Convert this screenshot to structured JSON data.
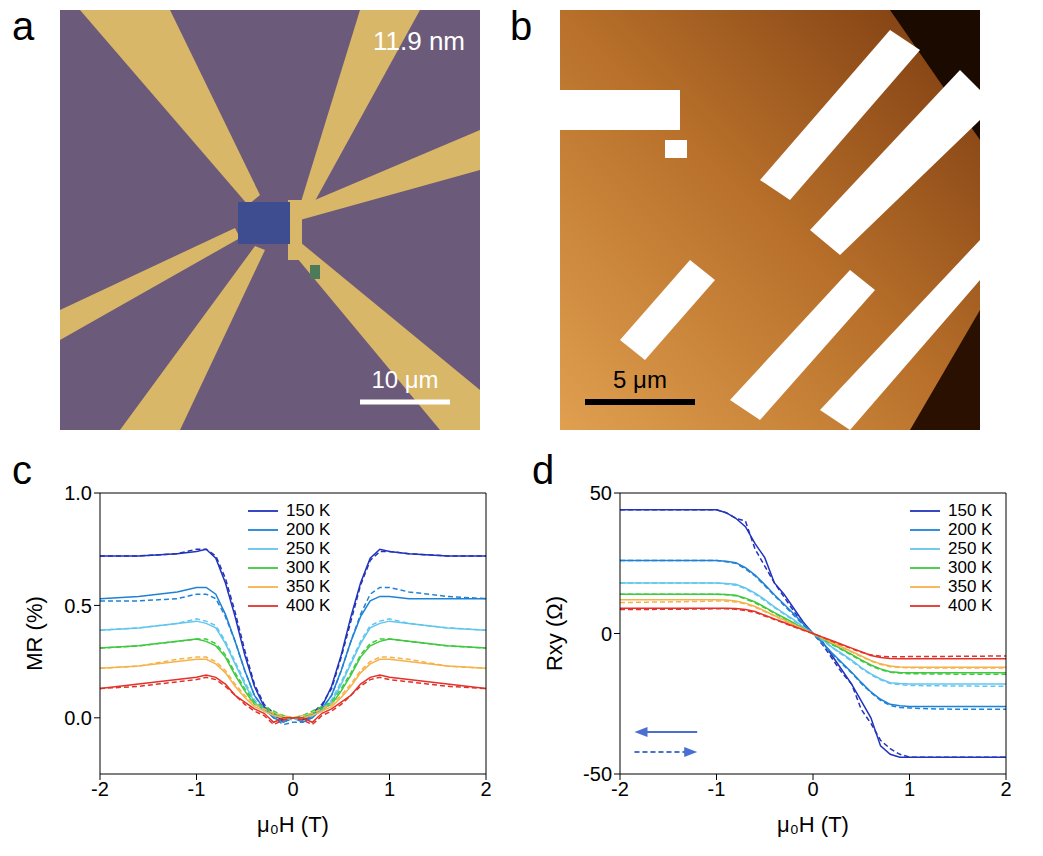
{
  "images": [
    {
      "panel": "a",
      "texts": [
        "11.9 nm"
      ],
      "scale_bar": "10 μm"
    },
    {
      "panel": "b",
      "scale_bar": "5 μm"
    }
  ],
  "chart_data": [
    {
      "panel": "c",
      "type": "line",
      "x_label": "μ₀H (T)",
      "y_label": "MR (%)",
      "xlim": [
        -2,
        2
      ],
      "xticks": [
        -2,
        -1,
        0,
        1,
        2
      ],
      "ylim": [
        -0.25,
        1
      ],
      "yticks": [
        {
          "value": 0,
          "label": "0.0"
        },
        {
          "value": 0.5,
          "label": "0.5"
        },
        {
          "value": 1,
          "label": "1.0"
        }
      ],
      "legend": "top",
      "x": [
        -2,
        -1.6,
        -1.2,
        -1,
        -0.9,
        -0.8,
        -0.7,
        -0.6,
        -0.5,
        -0.4,
        -0.3,
        -0.2,
        -0.1,
        0,
        0.1,
        0.2,
        0.3,
        0.4,
        0.5,
        0.6,
        0.7,
        0.8,
        0.9,
        1,
        1.2,
        1.6,
        2
      ],
      "series": [
        {
          "name": "150 K",
          "color": "#2233bb",
          "line_style": "solid",
          "values": [
            0.72,
            0.72,
            0.73,
            0.74,
            0.75,
            0.71,
            0.6,
            0.45,
            0.28,
            0.14,
            0.05,
            0.01,
            -0.01,
            0.0,
            -0.01,
            0.01,
            0.05,
            0.14,
            0.28,
            0.45,
            0.6,
            0.71,
            0.75,
            0.74,
            0.73,
            0.72,
            0.72
          ]
        },
        {
          "name": "150 K",
          "color": "#2233bb",
          "line_style": "dashed",
          "values": [
            0.72,
            0.72,
            0.73,
            0.75,
            0.75,
            0.72,
            0.62,
            0.47,
            0.3,
            0.15,
            0.06,
            0.02,
            -0.02,
            0.0,
            0.0,
            0.02,
            0.06,
            0.13,
            0.27,
            0.43,
            0.59,
            0.7,
            0.74,
            0.74,
            0.73,
            0.72,
            0.72
          ]
        },
        {
          "name": "200 K",
          "color": "#1f82d6",
          "line_style": "solid",
          "values": [
            0.53,
            0.54,
            0.56,
            0.58,
            0.58,
            0.55,
            0.46,
            0.34,
            0.21,
            0.1,
            0.04,
            0.0,
            -0.02,
            0.0,
            -0.02,
            0.0,
            0.04,
            0.1,
            0.21,
            0.34,
            0.45,
            0.52,
            0.54,
            0.54,
            0.53,
            0.53,
            0.53
          ]
        },
        {
          "name": "200 K",
          "color": "#1f82d6",
          "line_style": "dashed",
          "values": [
            0.52,
            0.52,
            0.53,
            0.55,
            0.55,
            0.53,
            0.45,
            0.34,
            0.21,
            0.1,
            0.04,
            0.0,
            -0.03,
            -0.02,
            -0.02,
            0.01,
            0.04,
            0.1,
            0.21,
            0.34,
            0.46,
            0.55,
            0.58,
            0.58,
            0.56,
            0.54,
            0.53
          ]
        },
        {
          "name": "250 K",
          "color": "#62c6ee",
          "line_style": "solid",
          "values": [
            0.39,
            0.4,
            0.42,
            0.43,
            0.42,
            0.4,
            0.33,
            0.24,
            0.15,
            0.07,
            0.03,
            0.01,
            0.0,
            0.0,
            0.0,
            0.01,
            0.03,
            0.07,
            0.15,
            0.24,
            0.33,
            0.4,
            0.42,
            0.43,
            0.42,
            0.4,
            0.39
          ]
        },
        {
          "name": "250 K",
          "color": "#62c6ee",
          "line_style": "dashed",
          "values": [
            0.39,
            0.4,
            0.42,
            0.44,
            0.43,
            0.41,
            0.34,
            0.25,
            0.16,
            0.08,
            0.04,
            0.02,
            0.0,
            -0.01,
            0.0,
            0.02,
            0.04,
            0.08,
            0.16,
            0.25,
            0.34,
            0.41,
            0.43,
            0.44,
            0.42,
            0.4,
            0.39
          ]
        },
        {
          "name": "300 K",
          "color": "#3ec93e",
          "line_style": "solid",
          "values": [
            0.31,
            0.32,
            0.34,
            0.35,
            0.34,
            0.32,
            0.27,
            0.19,
            0.12,
            0.06,
            0.04,
            0.02,
            0.0,
            0.0,
            0.0,
            0.02,
            0.04,
            0.06,
            0.12,
            0.19,
            0.27,
            0.32,
            0.34,
            0.35,
            0.34,
            0.32,
            0.31
          ]
        },
        {
          "name": "300 K",
          "color": "#3ec93e",
          "line_style": "dashed",
          "values": [
            0.31,
            0.32,
            0.34,
            0.35,
            0.35,
            0.33,
            0.28,
            0.2,
            0.13,
            0.07,
            0.05,
            0.03,
            0.01,
            0.0,
            0.01,
            0.03,
            0.05,
            0.07,
            0.13,
            0.2,
            0.28,
            0.33,
            0.35,
            0.35,
            0.34,
            0.32,
            0.31
          ]
        },
        {
          "name": "350 K",
          "color": "#f6b24a",
          "line_style": "solid",
          "values": [
            0.22,
            0.23,
            0.25,
            0.26,
            0.26,
            0.24,
            0.2,
            0.14,
            0.09,
            0.05,
            0.03,
            0.01,
            0.0,
            0.0,
            0.0,
            0.01,
            0.03,
            0.05,
            0.09,
            0.14,
            0.2,
            0.24,
            0.26,
            0.26,
            0.25,
            0.23,
            0.22
          ]
        },
        {
          "name": "350 K",
          "color": "#f6b24a",
          "line_style": "dashed",
          "values": [
            0.22,
            0.23,
            0.26,
            0.27,
            0.27,
            0.25,
            0.21,
            0.15,
            0.1,
            0.06,
            0.04,
            0.02,
            0.01,
            0.0,
            0.01,
            0.02,
            0.04,
            0.06,
            0.1,
            0.15,
            0.21,
            0.25,
            0.27,
            0.27,
            0.26,
            0.23,
            0.22
          ]
        },
        {
          "name": "400 K",
          "color": "#e2322a",
          "line_style": "solid",
          "values": [
            0.13,
            0.15,
            0.17,
            0.18,
            0.19,
            0.18,
            0.15,
            0.1,
            0.07,
            0.04,
            0.02,
            -0.02,
            0.0,
            0.0,
            0.0,
            -0.02,
            0.02,
            0.04,
            0.07,
            0.1,
            0.15,
            0.18,
            0.19,
            0.18,
            0.17,
            0.15,
            0.13
          ]
        },
        {
          "name": "400 K",
          "color": "#e2322a",
          "line_style": "dashed",
          "values": [
            0.13,
            0.14,
            0.16,
            0.17,
            0.18,
            0.17,
            0.14,
            0.1,
            0.06,
            0.03,
            0.01,
            -0.03,
            -0.01,
            0.0,
            -0.01,
            -0.03,
            0.01,
            0.03,
            0.06,
            0.1,
            0.14,
            0.17,
            0.18,
            0.17,
            0.16,
            0.14,
            0.13
          ]
        }
      ]
    },
    {
      "panel": "d",
      "type": "line",
      "x_label": "μ₀H (T)",
      "y_label": "Rxy (Ω)",
      "xlim": [
        -2,
        2
      ],
      "xticks": [
        -2,
        -1,
        0,
        1,
        2
      ],
      "ylim": [
        -50,
        50
      ],
      "yticks": [
        -50,
        0,
        50
      ],
      "legend": "top-right",
      "x": [
        -2,
        -1.6,
        -1.2,
        -1,
        -0.9,
        -0.8,
        -0.7,
        -0.6,
        -0.5,
        -0.4,
        -0.3,
        -0.2,
        -0.1,
        0,
        0.1,
        0.2,
        0.3,
        0.4,
        0.5,
        0.6,
        0.7,
        0.8,
        0.9,
        1,
        1.2,
        1.6,
        2
      ],
      "series": [
        {
          "name": "150 K",
          "color": "#2233bb",
          "line_style": "solid",
          "values": [
            44,
            44,
            44,
            44,
            43,
            41,
            38,
            32,
            27,
            18,
            14,
            9,
            4,
            0,
            -3,
            -8,
            -13,
            -18,
            -24,
            -30,
            -40,
            -43,
            -44,
            -44,
            -44,
            -44,
            -44
          ]
        },
        {
          "name": "150 K",
          "color": "#2233bb",
          "line_style": "dashed",
          "values": [
            44,
            44,
            44,
            44,
            43,
            41,
            40,
            30,
            24,
            18,
            13,
            8,
            3,
            0,
            -4,
            -9,
            -14,
            -18,
            -27,
            -32,
            -38,
            -41,
            -43,
            -44,
            -44,
            -44,
            -44
          ]
        },
        {
          "name": "200 K",
          "color": "#1f82d6",
          "line_style": "solid",
          "values": [
            26,
            26,
            26,
            26,
            25.7,
            25.2,
            23.4,
            20.8,
            17.4,
            13.8,
            10.4,
            7,
            3.4,
            0,
            -3.4,
            -7,
            -10.4,
            -13.8,
            -17.4,
            -20.8,
            -23.4,
            -25.2,
            -25.7,
            -26,
            -26,
            -26,
            -26
          ]
        },
        {
          "name": "200 K",
          "color": "#1f82d6",
          "line_style": "dashed",
          "values": [
            26,
            26,
            26,
            26,
            25.5,
            25,
            23,
            20.5,
            17,
            13.5,
            10,
            6.5,
            3,
            0,
            -3.6,
            -7.3,
            -10.8,
            -14,
            -17.8,
            -21,
            -23.8,
            -25.6,
            -26.3,
            -26.5,
            -26.8,
            -27,
            -27
          ]
        },
        {
          "name": "250 K",
          "color": "#62c6ee",
          "line_style": "solid",
          "values": [
            18,
            18,
            18,
            18,
            17.8,
            17.5,
            16.2,
            14.4,
            12.1,
            9.5,
            7.2,
            4.9,
            2.3,
            0,
            -2.3,
            -4.9,
            -7.2,
            -9.5,
            -12.1,
            -14.4,
            -16.2,
            -17.5,
            -17.8,
            -18,
            -18,
            -18,
            -18
          ]
        },
        {
          "name": "250 K",
          "color": "#62c6ee",
          "line_style": "dashed",
          "values": [
            18,
            18,
            18,
            18,
            17.6,
            17.2,
            15.9,
            14,
            11.7,
            9.2,
            6.9,
            4.6,
            2.1,
            0,
            -2.5,
            -5.1,
            -7.5,
            -9.8,
            -12.4,
            -14.7,
            -16.5,
            -17.8,
            -18.2,
            -18.5,
            -18.6,
            -18.7,
            -18.8
          ]
        },
        {
          "name": "300 K",
          "color": "#3ec93e",
          "line_style": "solid",
          "values": [
            14,
            14,
            14,
            14,
            13.9,
            13.6,
            12.6,
            11.2,
            9.4,
            7.4,
            5.6,
            3.8,
            1.8,
            0,
            -1.8,
            -3.8,
            -5.6,
            -7.4,
            -9.4,
            -11.2,
            -12.6,
            -13.6,
            -13.9,
            -14,
            -14,
            -14,
            -14
          ]
        },
        {
          "name": "300 K",
          "color": "#3ec93e",
          "line_style": "dashed",
          "values": [
            14,
            14,
            14,
            14,
            13.8,
            13.4,
            12.3,
            10.9,
            9.1,
            7.2,
            5.4,
            3.6,
            1.6,
            0,
            -2,
            -4,
            -5.8,
            -7.7,
            -9.7,
            -11.5,
            -12.9,
            -13.8,
            -14.1,
            -14.3,
            -14.4,
            -14.5,
            -14.5
          ]
        },
        {
          "name": "350 K",
          "color": "#f6b24a",
          "line_style": "solid",
          "values": [
            12,
            12,
            12,
            12,
            11.9,
            11.6,
            10.8,
            9.6,
            8,
            6.4,
            4.8,
            3.2,
            1.6,
            0,
            -1.6,
            -3.2,
            -4.8,
            -6.4,
            -8,
            -9.6,
            -10.8,
            -11.6,
            -11.9,
            -12,
            -12,
            -12,
            -12
          ]
        },
        {
          "name": "350 K",
          "color": "#f6b24a",
          "line_style": "dashed",
          "values": [
            11,
            11.2,
            11.4,
            11.6,
            11.5,
            11.2,
            10.5,
            9.3,
            7.8,
            6.2,
            4.6,
            3,
            1.4,
            0,
            -1.8,
            -3.4,
            -5,
            -6.6,
            -8.2,
            -9.8,
            -11,
            -11.8,
            -12.1,
            -12.2,
            -12.3,
            -12.3,
            -12.3
          ]
        },
        {
          "name": "400 K",
          "color": "#e2322a",
          "line_style": "solid",
          "values": [
            9,
            9,
            9,
            9,
            9,
            8.9,
            8.5,
            7.8,
            6.5,
            5.2,
            3.9,
            2.6,
            1.3,
            0,
            -1.3,
            -2.6,
            -3.9,
            -5.2,
            -6.5,
            -7.8,
            -8.5,
            -8.9,
            -9,
            -9,
            -9,
            -9,
            -9
          ]
        },
        {
          "name": "400 K",
          "color": "#e2322a",
          "line_style": "dashed",
          "values": [
            8.5,
            8.6,
            8.7,
            8.8,
            8.8,
            8.6,
            8.2,
            7.5,
            6.2,
            5,
            3.7,
            2.4,
            1.1,
            0,
            -1.4,
            -2.8,
            -4.1,
            -5.4,
            -6.7,
            -7.6,
            -8.1,
            -8.3,
            -8.3,
            -8.2,
            -8.2,
            -8.1,
            -8
          ]
        }
      ]
    }
  ]
}
